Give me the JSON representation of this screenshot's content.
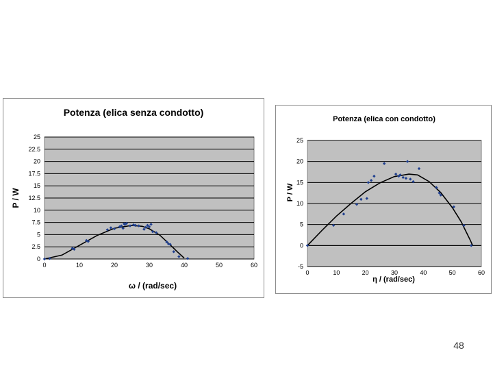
{
  "page_number": "48",
  "chart_data": [
    {
      "type": "scatter",
      "title": "Potenza (elica senza condotto)",
      "xlabel": "ω / (rad/sec)",
      "ylabel": "P / W",
      "xlim": [
        0,
        60
      ],
      "ylim": [
        0,
        25
      ],
      "xticks": [
        0,
        10,
        20,
        30,
        40,
        50,
        60
      ],
      "xtick_labels": [
        "0",
        "10",
        "20",
        "30",
        "40",
        "50",
        "60"
      ],
      "yticks": [
        0,
        2.5,
        5,
        7.5,
        10,
        12.5,
        15,
        17.5,
        20,
        22.5,
        25
      ],
      "ytick_labels": [
        "0",
        "2.5",
        "5",
        "7.5",
        "10",
        "12.5",
        "15",
        "17.5",
        "20",
        "22.5",
        "25"
      ],
      "grid": true,
      "plot_bg": "#c0c0c0",
      "marker_color": "#1f3f8f",
      "series": [
        {
          "points": [
            [
              0,
              0
            ],
            [
              1.5,
              0.1
            ],
            [
              8,
              2.2
            ],
            [
              8.5,
              2
            ],
            [
              12,
              3.8
            ],
            [
              12.5,
              3.6
            ],
            [
              18,
              6
            ],
            [
              19,
              6.4
            ],
            [
              20,
              6.2
            ],
            [
              21.5,
              6.6
            ],
            [
              22,
              6.8
            ],
            [
              22.5,
              6.3
            ],
            [
              22.8,
              7.2
            ],
            [
              23,
              7.1
            ],
            [
              23.5,
              7.3
            ],
            [
              24.5,
              6.8
            ],
            [
              25.5,
              7
            ],
            [
              26,
              6.9
            ],
            [
              27,
              6.8
            ],
            [
              28.5,
              6.1
            ],
            [
              29,
              6.5
            ],
            [
              29.5,
              6.9
            ],
            [
              30,
              6.6
            ],
            [
              30.5,
              7.1
            ],
            [
              31,
              5.6
            ],
            [
              32,
              5.4
            ],
            [
              35,
              3.5
            ],
            [
              35.5,
              3.1
            ],
            [
              36,
              3
            ],
            [
              37,
              1.5
            ],
            [
              38.5,
              0.5
            ],
            [
              41,
              0.1
            ]
          ],
          "fit_curve": [
            [
              0,
              0
            ],
            [
              5,
              0.8
            ],
            [
              10,
              2.8
            ],
            [
              15,
              4.8
            ],
            [
              20,
              6.3
            ],
            [
              25,
              6.9
            ],
            [
              28,
              6.7
            ],
            [
              30,
              6.2
            ],
            [
              33,
              4.9
            ],
            [
              36,
              2.9
            ],
            [
              38,
              1.5
            ],
            [
              40,
              0.2
            ]
          ]
        }
      ]
    },
    {
      "type": "scatter",
      "title": "Potenza (elica con condotto)",
      "xlabel": "η / (rad/sec)",
      "ylabel": "P / W",
      "xlim": [
        0,
        60
      ],
      "ylim": [
        -5,
        25
      ],
      "xticks": [
        0,
        10,
        20,
        30,
        40,
        50,
        60
      ],
      "xtick_labels": [
        "0",
        "10",
        "20",
        "30",
        "40",
        "50",
        "60"
      ],
      "yticks": [
        -5,
        0,
        5,
        10,
        15,
        20,
        25
      ],
      "ytick_labels": [
        "-5",
        "0",
        "5",
        "10",
        "15",
        "20",
        "25"
      ],
      "grid": true,
      "plot_bg": "#c0c0c0",
      "marker_color": "#1f3f8f",
      "series": [
        {
          "points": [
            [
              0,
              0
            ],
            [
              9,
              4.8
            ],
            [
              12.5,
              7.5
            ],
            [
              17,
              9.8
            ],
            [
              18.5,
              11
            ],
            [
              20.5,
              11.2
            ],
            [
              21,
              15
            ],
            [
              22,
              15.5
            ],
            [
              23,
              16.5
            ],
            [
              26.5,
              19.5
            ],
            [
              30.5,
              17
            ],
            [
              31.5,
              16.5
            ],
            [
              32,
              16.8
            ],
            [
              33,
              16.2
            ],
            [
              34,
              16
            ],
            [
              34.5,
              20
            ],
            [
              35.5,
              15.8
            ],
            [
              36.5,
              15.2
            ],
            [
              38.5,
              18.3
            ],
            [
              44.5,
              13.8
            ],
            [
              45.5,
              12.5
            ],
            [
              46,
              12
            ],
            [
              50.5,
              9.2
            ],
            [
              54,
              4.8
            ],
            [
              56.5,
              0
            ]
          ],
          "fit_curve": [
            [
              0,
              0
            ],
            [
              5,
              3.6
            ],
            [
              10,
              7
            ],
            [
              15,
              10
            ],
            [
              20,
              12.8
            ],
            [
              25,
              14.9
            ],
            [
              30,
              16.4
            ],
            [
              35,
              17
            ],
            [
              38,
              16.8
            ],
            [
              42,
              15.2
            ],
            [
              46,
              12.6
            ],
            [
              50,
              9
            ],
            [
              53,
              5.7
            ],
            [
              56,
              1.5
            ],
            [
              57,
              0
            ]
          ]
        }
      ]
    }
  ]
}
